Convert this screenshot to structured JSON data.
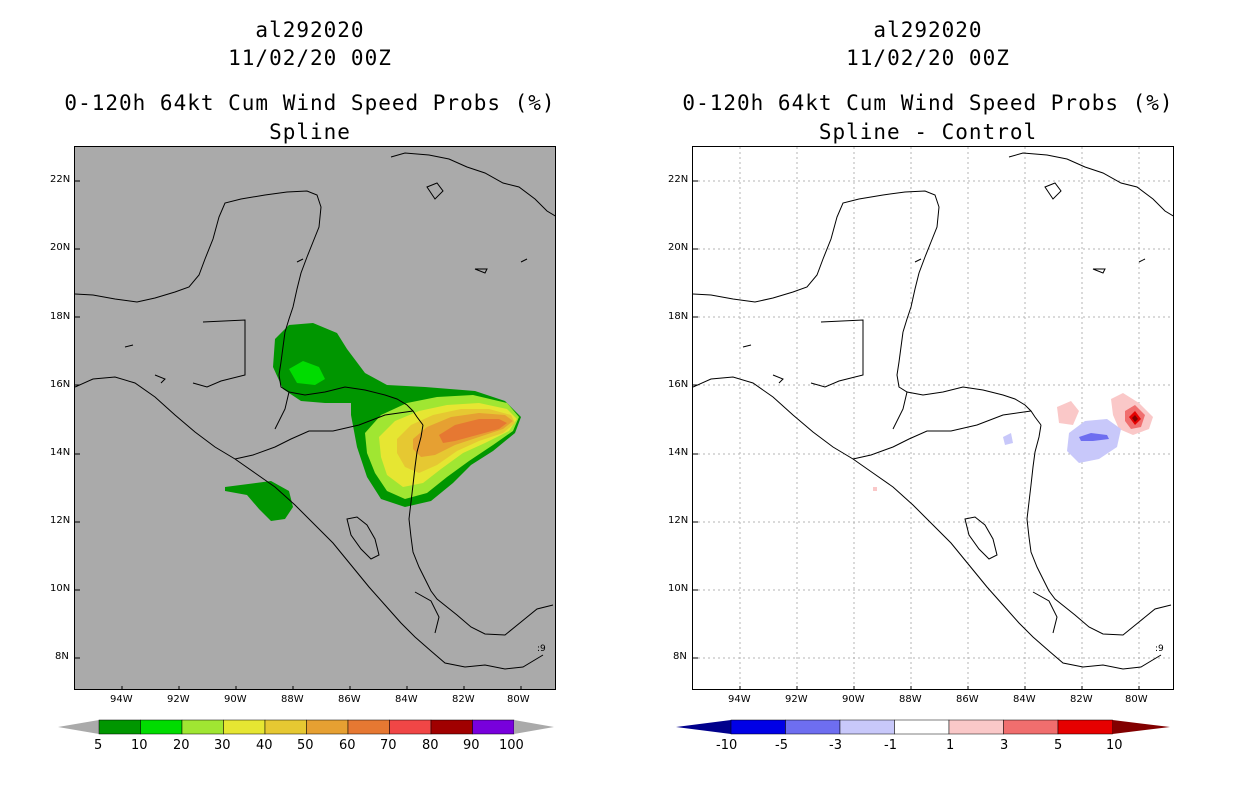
{
  "left_panel": {
    "title1": "al292020",
    "title2": "11/02/20 00Z",
    "title3": "0-120h 64kt Cum Wind Speed Probs (%)",
    "title4": "Spline",
    "background": "#aaaaaa",
    "colorbar": {
      "labels": [
        "5",
        "10",
        "20",
        "30",
        "40",
        "50",
        "60",
        "70",
        "80",
        "90",
        "100"
      ],
      "colors": [
        "#009600",
        "#00dc00",
        "#a0e632",
        "#e6e632",
        "#e6c832",
        "#e6a032",
        "#e67832",
        "#f04646",
        "#a00000",
        "#7800dc"
      ],
      "end_low": "#aaaaaa",
      "end_high": "#aaaaaa"
    }
  },
  "right_panel": {
    "title1": "al292020",
    "title2": "11/02/20 00Z",
    "title3": "0-120h 64kt Cum Wind Speed Probs (%)",
    "title4": "Spline - Control",
    "background": "#ffffff",
    "colorbar": {
      "labels": [
        "-10",
        "-5",
        "-3",
        "-1",
        "1",
        "3",
        "5",
        "10"
      ],
      "colors": [
        "#0000e6",
        "#6e6ef0",
        "#c8c8fa",
        "#ffffff",
        "#fac8c8",
        "#f06e6e",
        "#e60000"
      ],
      "end_low": "#00008c",
      "end_high": "#820000"
    }
  },
  "axes": {
    "lat_labels": [
      "22N",
      "20N",
      "18N",
      "16N",
      "14N",
      "12N",
      "10N",
      "8N"
    ],
    "lon_labels": [
      "94W",
      "92W",
      "90W",
      "88W",
      "86W",
      "84W",
      "82W",
      "80W"
    ]
  },
  "map_annotation": ":9"
}
